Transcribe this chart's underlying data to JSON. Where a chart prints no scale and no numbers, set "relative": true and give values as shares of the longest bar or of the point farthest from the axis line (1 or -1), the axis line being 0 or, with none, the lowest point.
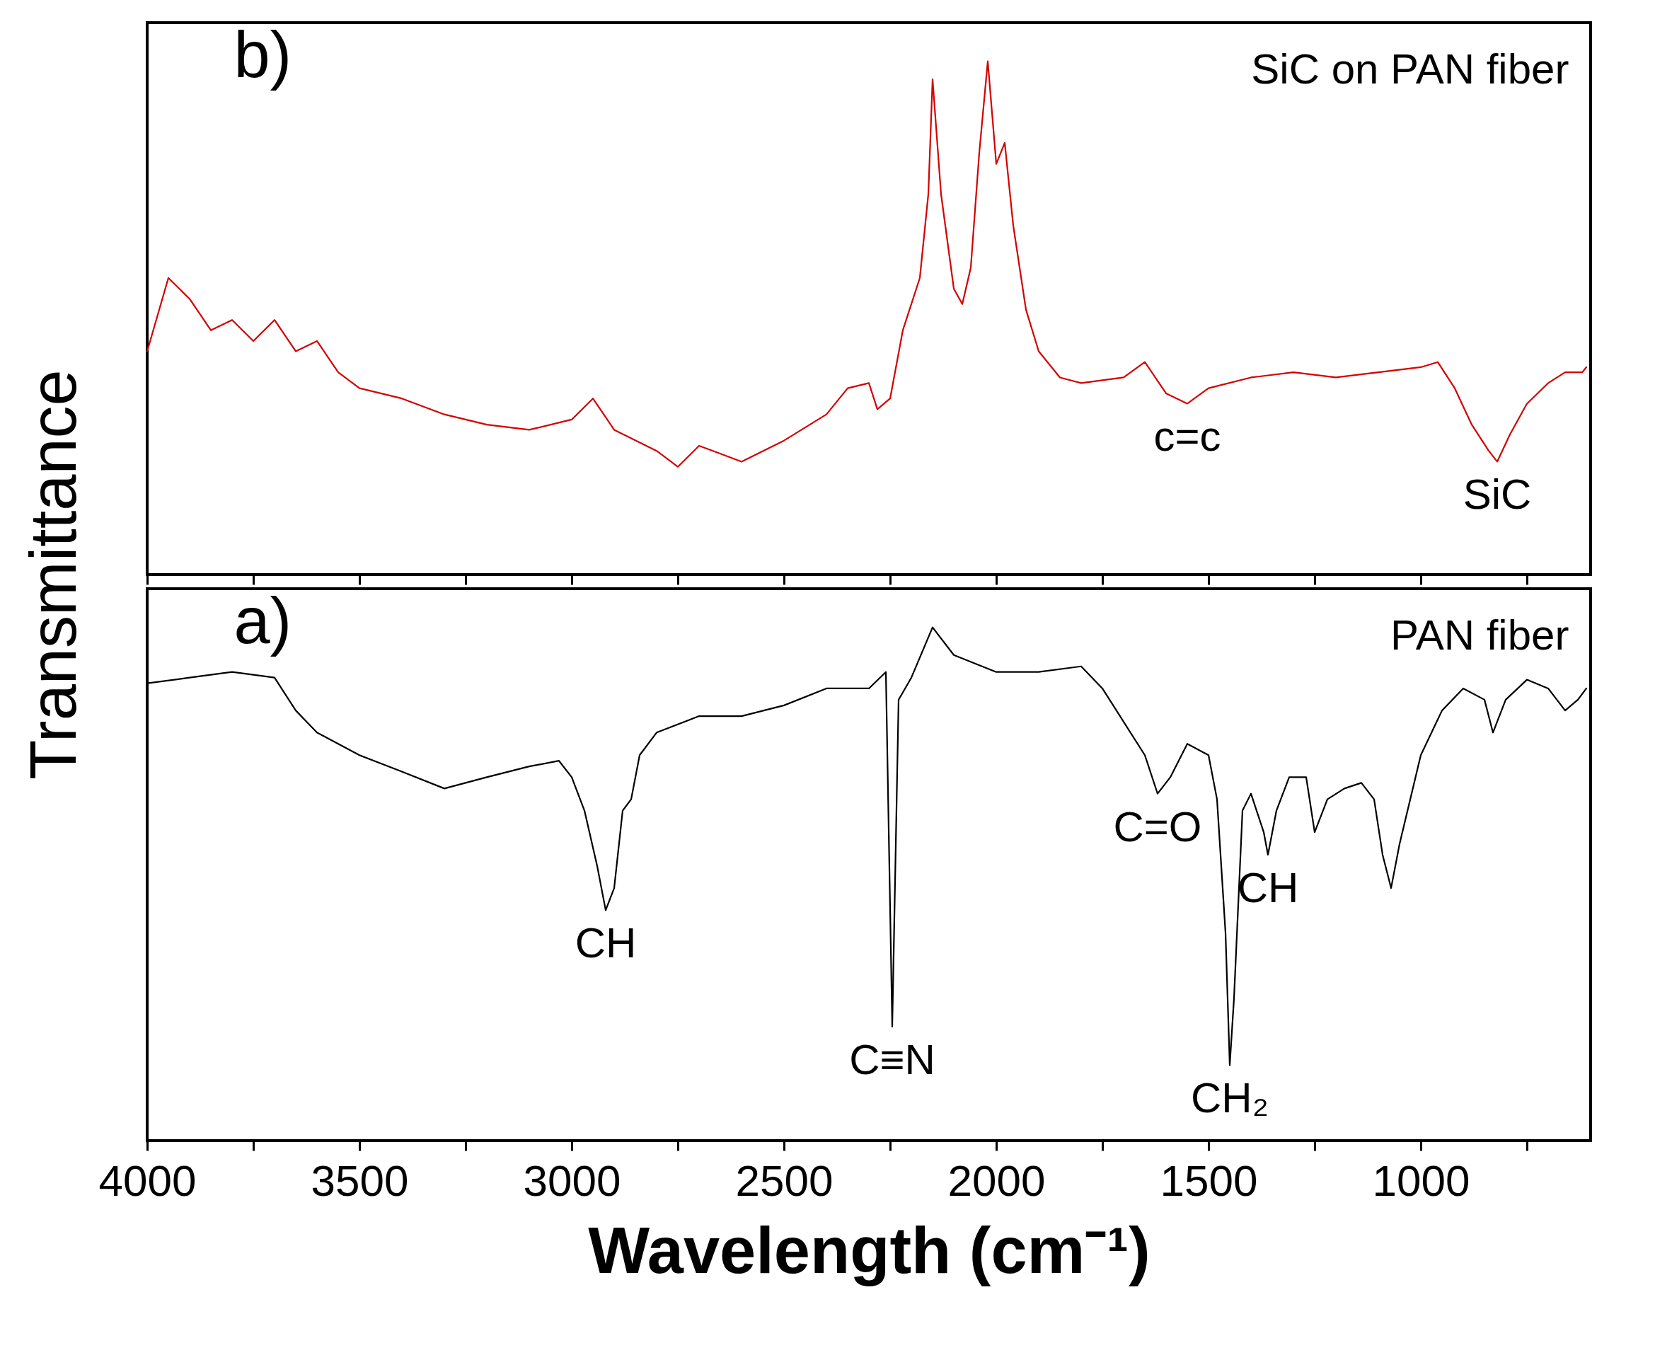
{
  "chart_data": [
    {
      "type": "line",
      "relative": true,
      "ylabel": "Transmittance",
      "xlim": [
        4000,
        600
      ],
      "xticks": [
        {
          "value": 4000,
          "label": null
        },
        {
          "value": 3750,
          "label": null
        },
        {
          "value": 3500,
          "label": null
        },
        {
          "value": 3250,
          "label": null
        },
        {
          "value": 3000,
          "label": null
        },
        {
          "value": 2750,
          "label": null
        },
        {
          "value": 2500,
          "label": null
        },
        {
          "value": 2250,
          "label": null
        },
        {
          "value": 2000,
          "label": null
        },
        {
          "value": 1750,
          "label": null
        },
        {
          "value": 1500,
          "label": null
        },
        {
          "value": 1250,
          "label": null
        },
        {
          "value": 1000,
          "label": null
        },
        {
          "value": 750,
          "label": null
        }
      ],
      "tick_labels": false,
      "grid": false,
      "marker": "none",
      "line_style": "solid",
      "x": [
        4000,
        3950,
        3900,
        3850,
        3800,
        3750,
        3700,
        3650,
        3600,
        3550,
        3500,
        3400,
        3300,
        3200,
        3100,
        3000,
        2950,
        2900,
        2800,
        2750,
        2700,
        2600,
        2500,
        2400,
        2350,
        2300,
        2280,
        2250,
        2220,
        2180,
        2160,
        2150,
        2130,
        2100,
        2080,
        2060,
        2040,
        2020,
        2000,
        1980,
        1960,
        1930,
        1900,
        1850,
        1800,
        1700,
        1650,
        1600,
        1550,
        1500,
        1400,
        1300,
        1200,
        1100,
        1000,
        960,
        920,
        880,
        840,
        820,
        790,
        750,
        700,
        660,
        620,
        610
      ],
      "series": [
        {
          "color": "#d40000",
          "values": [
            0.435,
            0.578,
            0.537,
            0.476,
            0.496,
            0.455,
            0.496,
            0.435,
            0.455,
            0.394,
            0.363,
            0.343,
            0.312,
            0.292,
            0.282,
            0.302,
            0.343,
            0.282,
            0.241,
            0.21,
            0.251,
            0.22,
            0.261,
            0.312,
            0.363,
            0.373,
            0.322,
            0.343,
            0.476,
            0.578,
            0.741,
            0.965,
            0.741,
            0.557,
            0.527,
            0.598,
            0.822,
            1.0,
            0.8,
            0.841,
            0.68,
            0.516,
            0.435,
            0.384,
            0.373,
            0.384,
            0.414,
            0.353,
            0.333,
            0.363,
            0.384,
            0.394,
            0.384,
            0.394,
            0.404,
            0.414,
            0.363,
            0.292,
            0.241,
            0.22,
            0.273,
            0.333,
            0.373,
            0.394,
            0.394,
            0.404
          ]
        }
      ],
      "annotations": [
        "b)",
        "SiC on PAN fiber",
        {
          "text": "c=c",
          "x": 1550,
          "y": 0.333
        },
        {
          "text": "SiC",
          "x": 820,
          "y": 0.22
        }
      ]
    },
    {
      "type": "line",
      "relative": true,
      "xlabel": "Wavelength (cm⁻¹)",
      "xlim": [
        4000,
        600
      ],
      "xticks": [
        4000,
        {
          "value": 3750,
          "label": null
        },
        3500,
        {
          "value": 3250,
          "label": null
        },
        3000,
        {
          "value": 2750,
          "label": null
        },
        2500,
        {
          "value": 2250,
          "label": null
        },
        2000,
        {
          "value": 1750,
          "label": null
        },
        1500,
        {
          "value": 1250,
          "label": null
        },
        1000,
        {
          "value": 750,
          "label": null
        }
      ],
      "tick_labels": "x",
      "grid": false,
      "marker": "none",
      "line_style": "solid",
      "x": [
        4000,
        3900,
        3800,
        3700,
        3650,
        3600,
        3500,
        3400,
        3300,
        3200,
        3100,
        3030,
        3000,
        2970,
        2940,
        2920,
        2900,
        2880,
        2860,
        2840,
        2800,
        2700,
        2600,
        2500,
        2400,
        2300,
        2260,
        2245,
        2230,
        2200,
        2150,
        2100,
        2000,
        1900,
        1800,
        1750,
        1700,
        1650,
        1620,
        1590,
        1550,
        1500,
        1480,
        1460,
        1450,
        1440,
        1420,
        1400,
        1370,
        1360,
        1340,
        1310,
        1270,
        1250,
        1220,
        1180,
        1140,
        1110,
        1090,
        1070,
        1050,
        1000,
        950,
        900,
        850,
        830,
        800,
        750,
        700,
        660,
        630,
        610
      ],
      "series": [
        {
          "color": "#000000",
          "values": [
            0.891,
            0.902,
            0.913,
            0.902,
            0.838,
            0.795,
            0.751,
            0.719,
            0.686,
            0.708,
            0.729,
            0.74,
            0.708,
            0.643,
            0.535,
            0.449,
            0.492,
            0.643,
            0.665,
            0.751,
            0.795,
            0.827,
            0.827,
            0.848,
            0.881,
            0.881,
            0.913,
            0.222,
            0.859,
            0.902,
            1.0,
            0.946,
            0.913,
            0.913,
            0.924,
            0.881,
            0.816,
            0.751,
            0.676,
            0.708,
            0.773,
            0.751,
            0.665,
            0.405,
            0.147,
            0.277,
            0.643,
            0.676,
            0.601,
            0.557,
            0.643,
            0.708,
            0.708,
            0.601,
            0.665,
            0.686,
            0.697,
            0.665,
            0.557,
            0.492,
            0.578,
            0.751,
            0.838,
            0.881,
            0.859,
            0.795,
            0.859,
            0.898,
            0.881,
            0.838,
            0.859,
            0.881
          ]
        }
      ],
      "annotations": [
        "a)",
        "PAN fiber",
        {
          "text": "CH",
          "x": 2920,
          "y": 0.449
        },
        {
          "text": "C≡N",
          "x": 2245,
          "y": 0.222
        },
        {
          "text": "C=O",
          "x": 1620,
          "y": 0.676
        },
        {
          "text": "CH₂",
          "x": 1450,
          "y": 0.147
        },
        {
          "text": "CH",
          "x": 1360,
          "y": 0.557
        }
      ]
    }
  ]
}
